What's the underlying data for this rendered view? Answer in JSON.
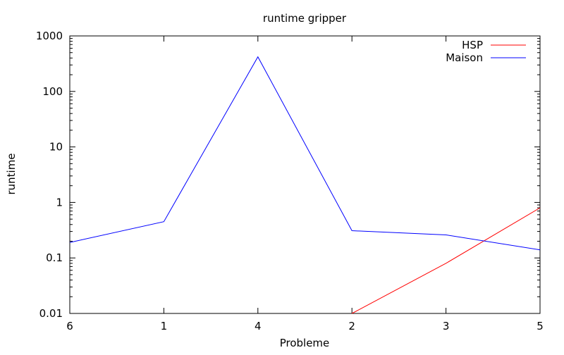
{
  "chart_data": {
    "type": "line",
    "title": "runtime gripper",
    "xlabel": "Probleme",
    "ylabel": "runtime",
    "categories": [
      "6",
      "1",
      "4",
      "2",
      "3",
      "5"
    ],
    "y_scale": "log",
    "ylim": [
      0.01,
      1000
    ],
    "y_ticks": [
      {
        "value": 0.01,
        "label": "0.01"
      },
      {
        "value": 0.1,
        "label": "0.1"
      },
      {
        "value": 1,
        "label": "1"
      },
      {
        "value": 10,
        "label": "10"
      },
      {
        "value": 100,
        "label": "100"
      },
      {
        "value": 1000,
        "label": "1000"
      }
    ],
    "grid": false,
    "legend_position": "top-right",
    "series": [
      {
        "name": "HSP",
        "color": "#ff0000",
        "values": [
          null,
          null,
          null,
          0.01,
          0.08,
          0.8
        ]
      },
      {
        "name": "Maison",
        "color": "#0000ff",
        "values": [
          0.19,
          0.45,
          420,
          0.31,
          0.26,
          0.14
        ]
      }
    ]
  }
}
